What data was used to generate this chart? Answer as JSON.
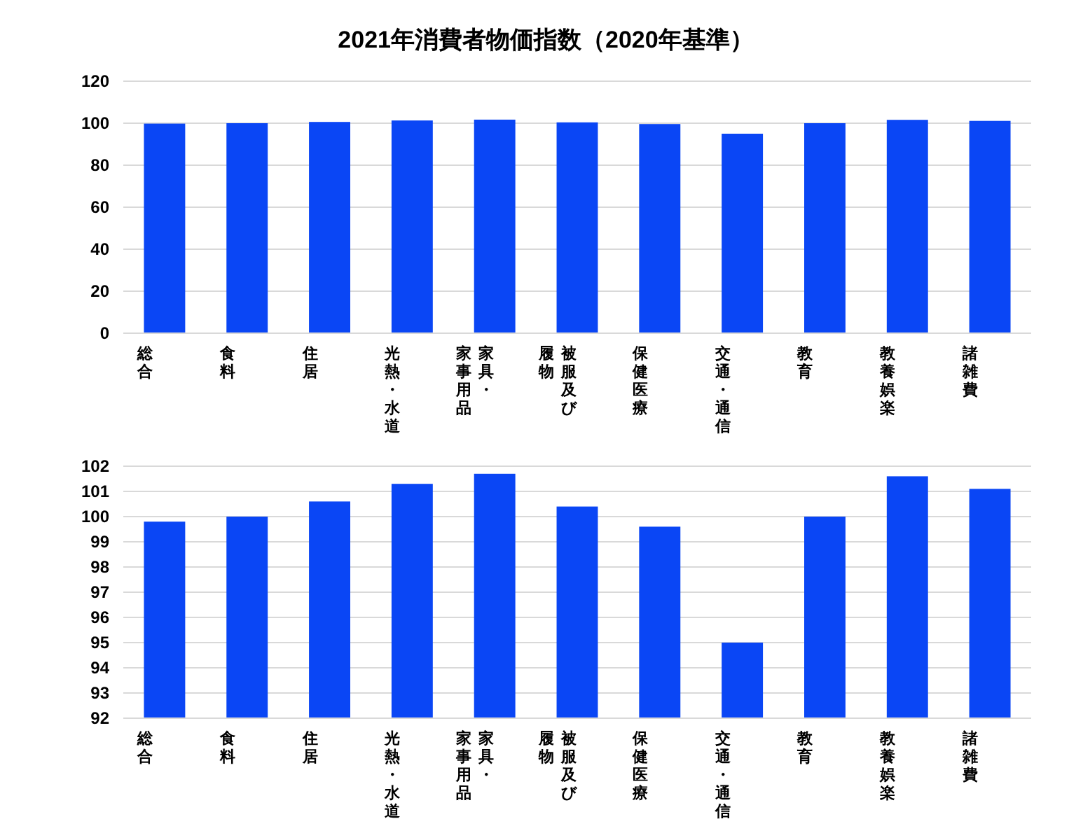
{
  "chart_data": [
    {
      "type": "bar",
      "title": "2021年消費者物価指数（2020年基準）",
      "categories": [
        "総合",
        "食料",
        "住居",
        "光熱・水道",
        "家具・家事用品",
        "被服及び履物",
        "保健医療",
        "交通・通信",
        "教育",
        "教養娯楽",
        "諸雑費"
      ],
      "series": [
        {
          "color": "#0a46f5",
          "values": [
            99.8,
            100.0,
            100.6,
            101.3,
            101.7,
            100.4,
            99.6,
            95.0,
            100.0,
            101.6,
            101.1
          ]
        }
      ],
      "ylim": [
        0,
        120
      ],
      "yticks": [
        0,
        20,
        40,
        60,
        80,
        100,
        120
      ],
      "grid": "y"
    },
    {
      "type": "bar",
      "categories": [
        "総合",
        "食料",
        "住居",
        "光熱・水道",
        "家具・家事用品",
        "被服及び履物",
        "保健医療",
        "交通・通信",
        "教育",
        "教養娯楽",
        "諸雑費"
      ],
      "series": [
        {
          "color": "#0a46f5",
          "values": [
            99.8,
            100.0,
            100.6,
            101.3,
            101.7,
            100.4,
            99.6,
            95.0,
            100.0,
            101.6,
            101.1
          ]
        }
      ],
      "ylim": [
        92,
        102
      ],
      "yticks": [
        92,
        93,
        94,
        95,
        96,
        97,
        98,
        99,
        100,
        101,
        102
      ],
      "grid": "y"
    }
  ]
}
